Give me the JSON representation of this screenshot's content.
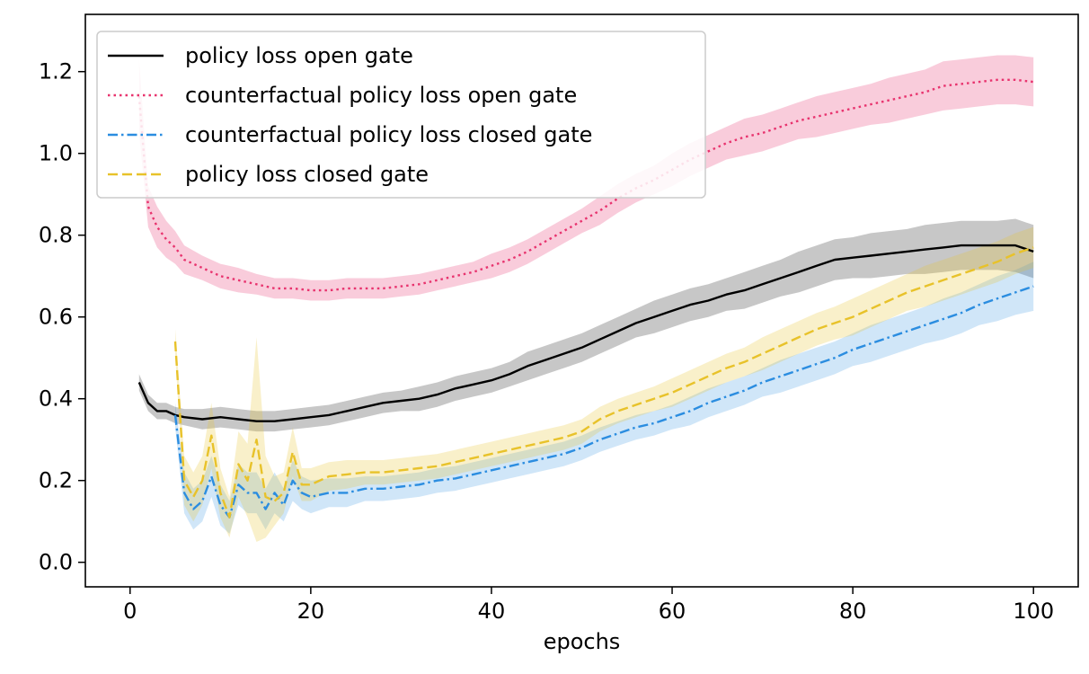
{
  "chart_data": {
    "type": "line",
    "title": "",
    "xlabel": "epochs",
    "ylabel": "",
    "xlim": [
      -4.95,
      104.95
    ],
    "ylim": [
      -0.06,
      1.34
    ],
    "xticks": [
      0,
      20,
      40,
      60,
      80,
      100
    ],
    "xtick_labels": [
      "0",
      "20",
      "40",
      "60",
      "80",
      "100"
    ],
    "yticks": [
      0.0,
      0.2,
      0.4,
      0.6,
      0.8,
      1.0,
      1.2
    ],
    "ytick_labels": [
      "0.0",
      "0.2",
      "0.4",
      "0.6",
      "0.8",
      "1.0",
      "1.2"
    ],
    "grid": false,
    "legend_position": "upper-left",
    "series": [
      {
        "name": "policy loss open gate",
        "color": "#000000",
        "dash": "solid",
        "band_opacity": 0.22,
        "x": [
          1,
          2,
          3,
          4,
          5,
          6,
          8,
          10,
          12,
          14,
          16,
          18,
          20,
          22,
          24,
          26,
          28,
          30,
          32,
          34,
          36,
          38,
          40,
          42,
          44,
          46,
          48,
          50,
          52,
          54,
          56,
          58,
          60,
          62,
          64,
          66,
          68,
          70,
          72,
          74,
          76,
          78,
          80,
          82,
          84,
          86,
          88,
          90,
          92,
          94,
          96,
          98,
          100
        ],
        "y": [
          0.44,
          0.39,
          0.37,
          0.37,
          0.36,
          0.355,
          0.35,
          0.355,
          0.35,
          0.345,
          0.345,
          0.35,
          0.355,
          0.36,
          0.37,
          0.38,
          0.39,
          0.395,
          0.4,
          0.41,
          0.425,
          0.435,
          0.445,
          0.46,
          0.48,
          0.495,
          0.51,
          0.525,
          0.545,
          0.565,
          0.585,
          0.6,
          0.615,
          0.63,
          0.64,
          0.655,
          0.665,
          0.68,
          0.695,
          0.71,
          0.725,
          0.74,
          0.745,
          0.75,
          0.755,
          0.76,
          0.765,
          0.77,
          0.775,
          0.775,
          0.775,
          0.775,
          0.76
        ],
        "err": [
          0.02,
          0.02,
          0.02,
          0.02,
          0.02,
          0.02,
          0.025,
          0.025,
          0.025,
          0.025,
          0.025,
          0.025,
          0.025,
          0.025,
          0.025,
          0.025,
          0.025,
          0.025,
          0.03,
          0.03,
          0.03,
          0.03,
          0.03,
          0.03,
          0.035,
          0.035,
          0.035,
          0.035,
          0.035,
          0.035,
          0.035,
          0.04,
          0.04,
          0.04,
          0.04,
          0.04,
          0.045,
          0.045,
          0.045,
          0.05,
          0.05,
          0.05,
          0.05,
          0.055,
          0.055,
          0.055,
          0.06,
          0.06,
          0.06,
          0.06,
          0.06,
          0.065,
          0.065
        ]
      },
      {
        "name": "counterfactual policy loss open gate",
        "color": "#e8336e",
        "dash": "dotted",
        "band_opacity": 0.25,
        "x": [
          1,
          2,
          3,
          4,
          5,
          6,
          8,
          10,
          12,
          14,
          16,
          18,
          20,
          22,
          24,
          26,
          28,
          30,
          32,
          34,
          36,
          38,
          40,
          42,
          44,
          46,
          48,
          50,
          52,
          54,
          56,
          58,
          60,
          62,
          64,
          66,
          68,
          70,
          72,
          74,
          76,
          78,
          80,
          82,
          84,
          86,
          88,
          90,
          92,
          94,
          96,
          98,
          100
        ],
        "y": [
          1.14,
          0.87,
          0.82,
          0.79,
          0.77,
          0.74,
          0.72,
          0.7,
          0.69,
          0.68,
          0.67,
          0.67,
          0.665,
          0.665,
          0.67,
          0.67,
          0.67,
          0.675,
          0.68,
          0.69,
          0.7,
          0.71,
          0.725,
          0.74,
          0.76,
          0.785,
          0.81,
          0.835,
          0.86,
          0.89,
          0.915,
          0.935,
          0.96,
          0.985,
          1.005,
          1.025,
          1.04,
          1.05,
          1.065,
          1.08,
          1.09,
          1.1,
          1.11,
          1.12,
          1.13,
          1.14,
          1.15,
          1.165,
          1.17,
          1.175,
          1.18,
          1.18,
          1.175
        ],
        "err": [
          0.09,
          0.05,
          0.05,
          0.045,
          0.04,
          0.035,
          0.03,
          0.03,
          0.03,
          0.025,
          0.025,
          0.025,
          0.025,
          0.025,
          0.025,
          0.025,
          0.025,
          0.025,
          0.025,
          0.025,
          0.025,
          0.025,
          0.03,
          0.03,
          0.03,
          0.03,
          0.03,
          0.03,
          0.035,
          0.035,
          0.035,
          0.035,
          0.04,
          0.04,
          0.04,
          0.04,
          0.045,
          0.045,
          0.045,
          0.045,
          0.05,
          0.05,
          0.05,
          0.05,
          0.055,
          0.055,
          0.055,
          0.06,
          0.06,
          0.06,
          0.06,
          0.06,
          0.06
        ]
      },
      {
        "name": "counterfactual policy loss closed gate",
        "color": "#2b8de0",
        "dash": "dashdot",
        "band_opacity": 0.22,
        "x": [
          5,
          6,
          7,
          8,
          9,
          10,
          11,
          12,
          13,
          14,
          15,
          16,
          17,
          18,
          19,
          20,
          22,
          24,
          26,
          28,
          30,
          32,
          34,
          36,
          38,
          40,
          42,
          44,
          46,
          48,
          50,
          52,
          54,
          56,
          58,
          60,
          62,
          64,
          66,
          68,
          70,
          72,
          74,
          76,
          78,
          80,
          82,
          84,
          86,
          88,
          90,
          92,
          94,
          96,
          98,
          100
        ],
        "y": [
          0.36,
          0.17,
          0.13,
          0.15,
          0.21,
          0.14,
          0.11,
          0.19,
          0.17,
          0.17,
          0.13,
          0.17,
          0.14,
          0.2,
          0.17,
          0.16,
          0.17,
          0.17,
          0.18,
          0.18,
          0.185,
          0.19,
          0.2,
          0.205,
          0.215,
          0.225,
          0.235,
          0.245,
          0.255,
          0.265,
          0.28,
          0.3,
          0.315,
          0.33,
          0.34,
          0.355,
          0.37,
          0.39,
          0.405,
          0.42,
          0.44,
          0.455,
          0.47,
          0.485,
          0.5,
          0.52,
          0.535,
          0.55,
          0.565,
          0.58,
          0.595,
          0.61,
          0.63,
          0.645,
          0.66,
          0.675
        ],
        "err": [
          0.03,
          0.05,
          0.05,
          0.05,
          0.05,
          0.05,
          0.04,
          0.05,
          0.05,
          0.05,
          0.05,
          0.05,
          0.04,
          0.05,
          0.04,
          0.04,
          0.035,
          0.035,
          0.03,
          0.03,
          0.03,
          0.03,
          0.03,
          0.03,
          0.03,
          0.03,
          0.03,
          0.03,
          0.03,
          0.03,
          0.03,
          0.03,
          0.03,
          0.03,
          0.03,
          0.03,
          0.035,
          0.035,
          0.035,
          0.035,
          0.035,
          0.04,
          0.04,
          0.04,
          0.04,
          0.04,
          0.045,
          0.045,
          0.045,
          0.045,
          0.05,
          0.05,
          0.05,
          0.055,
          0.055,
          0.06
        ]
      },
      {
        "name": "policy loss closed gate",
        "color": "#e8c22a",
        "dash": "dashed",
        "band_opacity": 0.25,
        "x": [
          5,
          6,
          7,
          8,
          9,
          10,
          11,
          12,
          13,
          14,
          15,
          16,
          17,
          18,
          19,
          20,
          22,
          24,
          26,
          28,
          30,
          32,
          34,
          36,
          38,
          40,
          42,
          44,
          46,
          48,
          50,
          52,
          54,
          56,
          58,
          60,
          62,
          64,
          66,
          68,
          70,
          72,
          74,
          76,
          78,
          80,
          82,
          84,
          86,
          88,
          90,
          92,
          94,
          96,
          98,
          100
        ],
        "y": [
          0.54,
          0.2,
          0.16,
          0.2,
          0.31,
          0.17,
          0.11,
          0.24,
          0.2,
          0.3,
          0.16,
          0.15,
          0.17,
          0.27,
          0.19,
          0.19,
          0.21,
          0.215,
          0.22,
          0.22,
          0.225,
          0.23,
          0.235,
          0.245,
          0.255,
          0.265,
          0.275,
          0.285,
          0.295,
          0.305,
          0.32,
          0.35,
          0.37,
          0.385,
          0.4,
          0.415,
          0.435,
          0.455,
          0.475,
          0.49,
          0.51,
          0.53,
          0.55,
          0.57,
          0.585,
          0.6,
          0.62,
          0.64,
          0.66,
          0.675,
          0.69,
          0.705,
          0.72,
          0.735,
          0.755,
          0.77
        ],
        "err": [
          0.03,
          0.06,
          0.06,
          0.06,
          0.08,
          0.06,
          0.05,
          0.08,
          0.09,
          0.25,
          0.1,
          0.06,
          0.05,
          0.06,
          0.04,
          0.04,
          0.035,
          0.035,
          0.03,
          0.03,
          0.03,
          0.03,
          0.03,
          0.03,
          0.03,
          0.03,
          0.03,
          0.03,
          0.03,
          0.03,
          0.03,
          0.03,
          0.03,
          0.03,
          0.03,
          0.035,
          0.035,
          0.035,
          0.035,
          0.035,
          0.04,
          0.04,
          0.04,
          0.04,
          0.04,
          0.045,
          0.045,
          0.045,
          0.045,
          0.05,
          0.05,
          0.05,
          0.05,
          0.05,
          0.05,
          0.05
        ]
      }
    ]
  }
}
